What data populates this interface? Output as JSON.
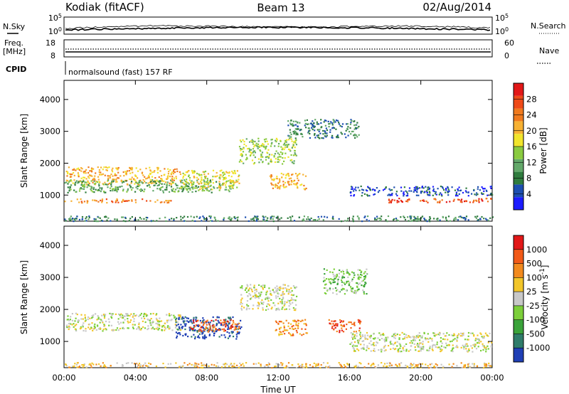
{
  "header": {
    "radar": "Kodiak (fitACF)",
    "beam": "Beam 13",
    "date": "02/Aug/2014"
  },
  "strips": {
    "nsky_label": "N.Sky",
    "nsky_ticks": [
      "10^5",
      "10^0"
    ],
    "nsearch_label": "N.Search",
    "nsearch_ticks": [
      "10^5",
      "10^0"
    ],
    "freq_label": "Freq.",
    "freq_unit": "[MHz]",
    "freq_ticks": [
      "18",
      "8"
    ],
    "nave_label": "Nave",
    "nave_ticks": [
      "60",
      "0"
    ],
    "cpid_label": "CPID",
    "cpid_text": "normalsound (fast) 157 RF"
  },
  "chart_data": [
    {
      "type": "heatmap",
      "title": "",
      "xlabel": "",
      "ylabel": "Slant Range [km]",
      "x_ticks": [
        "00:00",
        "04:00",
        "08:00",
        "12:00",
        "16:00",
        "20:00",
        "00:00"
      ],
      "y_ticks": [
        "1000",
        "2000",
        "3000",
        "4000"
      ],
      "ylim": [
        180,
        4600
      ],
      "xlim_hours": [
        0,
        24
      ],
      "colorbar": {
        "label": "Power [dB]",
        "ticks": [
          "4",
          "8",
          "12",
          "16",
          "20",
          "24",
          "28"
        ],
        "colors": [
          "#1c1cff",
          "#1d4fb0",
          "#2f7c3e",
          "#63a86a",
          "#8acb40",
          "#f1e52c",
          "#f7b133",
          "#f07a1e",
          "#ef4a18",
          "#e21818"
        ]
      },
      "bands": [
        {
          "t0": 0.1,
          "t1": 6.5,
          "r0": 1350,
          "r1": 1900,
          "level": 6
        },
        {
          "t0": 0.0,
          "t1": 9.5,
          "r0": 1100,
          "r1": 1500,
          "level": 3
        },
        {
          "t0": 6.5,
          "t1": 9.8,
          "r0": 1200,
          "r1": 1800,
          "level": 5
        },
        {
          "t0": 9.8,
          "t1": 13.0,
          "r0": 2000,
          "r1": 2800,
          "level": 4
        },
        {
          "t0": 12.5,
          "t1": 16.5,
          "r0": 2800,
          "r1": 3400,
          "level": 2
        },
        {
          "t0": 11.5,
          "t1": 13.6,
          "r0": 1200,
          "r1": 1700,
          "level": 6
        },
        {
          "t0": 18.0,
          "t1": 24.0,
          "r0": 780,
          "r1": 920,
          "level": 8
        },
        {
          "t0": 0.0,
          "t1": 6.0,
          "r0": 780,
          "r1": 900,
          "level": 7
        },
        {
          "t0": 16.0,
          "t1": 24.0,
          "r0": 1000,
          "r1": 1300,
          "level": 1
        },
        {
          "t0": 0.0,
          "t1": 24.0,
          "r0": 200,
          "r1": 360,
          "level": 2
        }
      ]
    },
    {
      "type": "heatmap",
      "title": "",
      "xlabel": "Time UT",
      "ylabel": "Slant Range [km]",
      "x_ticks": [
        "00:00",
        "04:00",
        "08:00",
        "12:00",
        "16:00",
        "20:00",
        "00:00"
      ],
      "y_ticks": [
        "1000",
        "2000",
        "3000",
        "4000"
      ],
      "ylim": [
        180,
        4600
      ],
      "xlim_hours": [
        0,
        24
      ],
      "colorbar": {
        "label": "Velocity [m s^-1]",
        "ticks": [
          "1000",
          "500",
          "100",
          "25",
          "-25",
          "-100",
          "-500",
          "-1000"
        ],
        "colors": [
          "#1f3fb5",
          "#2f7c6a",
          "#3aa33a",
          "#7ccf3a",
          "#c8c8c8",
          "#f2c62a",
          "#f28a1e",
          "#f25a18",
          "#e21818"
        ]
      },
      "bands": [
        {
          "t0": 0.1,
          "t1": 6.5,
          "r0": 1350,
          "r1": 1900,
          "level": 4
        },
        {
          "t0": 6.2,
          "t1": 9.9,
          "r0": 1100,
          "r1": 1800,
          "level": 0
        },
        {
          "t0": 7.0,
          "t1": 9.8,
          "r0": 1300,
          "r1": 1700,
          "level": 7
        },
        {
          "t0": 9.8,
          "t1": 13.0,
          "r0": 2000,
          "r1": 2800,
          "level": 4
        },
        {
          "t0": 11.8,
          "t1": 13.6,
          "r0": 1200,
          "r1": 1700,
          "level": 6
        },
        {
          "t0": 14.8,
          "t1": 16.6,
          "r0": 1300,
          "r1": 1700,
          "level": 7
        },
        {
          "t0": 16.0,
          "t1": 24.0,
          "r0": 700,
          "r1": 1300,
          "level": 4
        },
        {
          "t0": 14.5,
          "t1": 17.0,
          "r0": 2500,
          "r1": 3300,
          "level": 3
        },
        {
          "t0": 0.0,
          "t1": 24.0,
          "r0": 200,
          "r1": 360,
          "level": 5
        }
      ]
    }
  ]
}
